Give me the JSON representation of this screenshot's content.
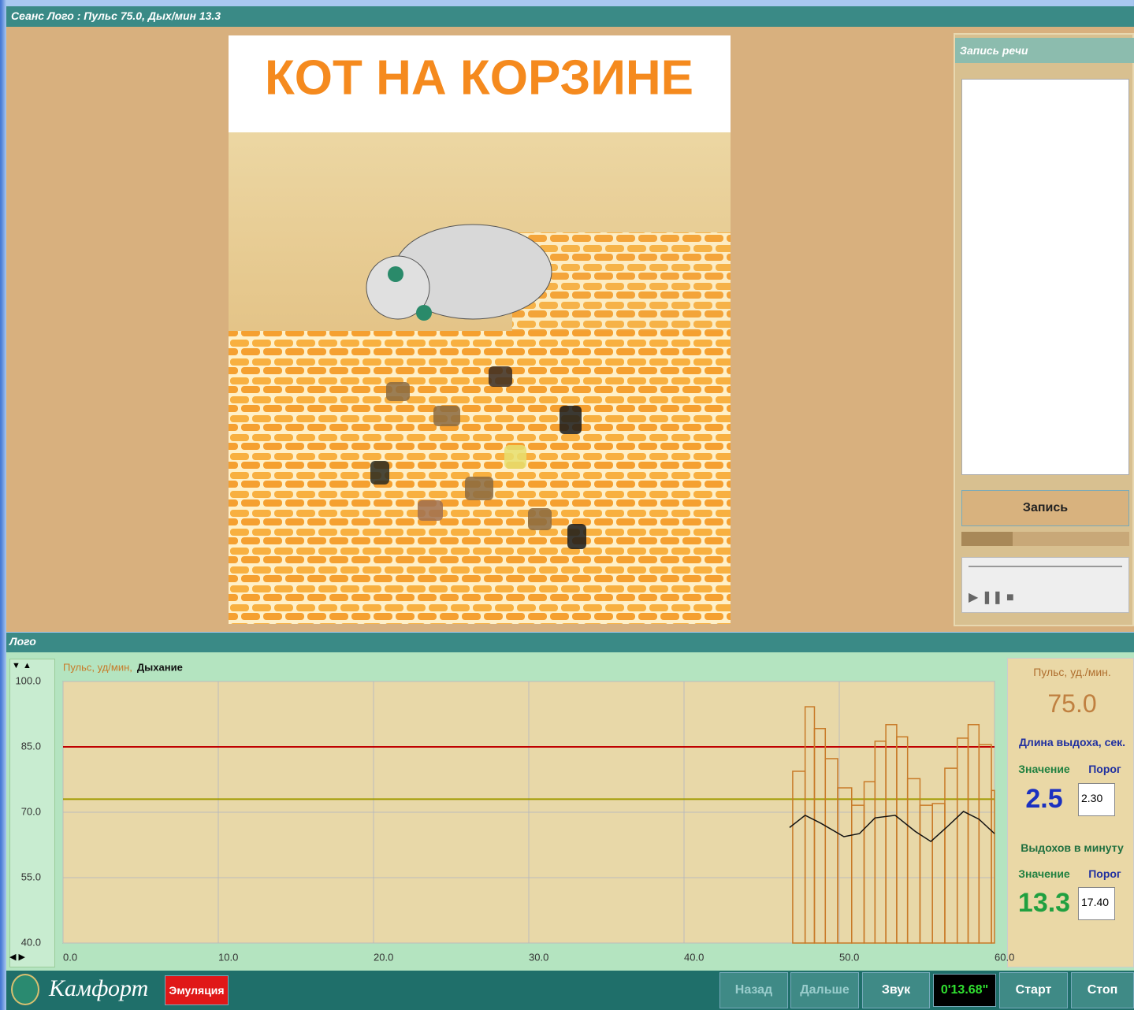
{
  "window": {
    "title": "Сеанс Лого : Пульс 75.0, Дых/мин 13.3"
  },
  "picture": {
    "title": "КОТ НА КОРЗИНЕ"
  },
  "speech_panel": {
    "title": "Запись речи",
    "record_button": "Запись"
  },
  "logo_panel": {
    "title": "Лого"
  },
  "indicators": {
    "pulse_title": "Пульс, уд./мин.",
    "pulse_value": "75.0",
    "exhale_title": "Длина выдоха, сек.",
    "exhale_value_label": "Значение",
    "exhale_threshold_label": "Порог",
    "exhale_value": "2.5",
    "exhale_threshold": "2.30",
    "rate_title": "Выдохов в минуту",
    "rate_value_label": "Значение",
    "rate_threshold_label": "Порог",
    "rate_value": "13.3",
    "rate_threshold": "17.40"
  },
  "footer": {
    "brand": "Камфорт",
    "mode": "Эмуляция",
    "back": "Назад",
    "next": "Дальше",
    "sound": "Звук",
    "timer": "0'13.68\"",
    "start": "Старт",
    "stop": "Стоп"
  },
  "chart_data": {
    "type": "bar",
    "xlim": [
      0,
      60
    ],
    "ylim": [
      40,
      100
    ],
    "xticks": [
      {
        "value": 0,
        "label": "0.0"
      },
      {
        "value": 10,
        "label": "10.0"
      },
      {
        "value": 20,
        "label": "20.0"
      },
      {
        "value": 30,
        "label": "30.0"
      },
      {
        "value": 40,
        "label": "40.0"
      },
      {
        "value": 50,
        "label": "50.0"
      },
      {
        "value": 60,
        "label": "60.0"
      }
    ],
    "yticks": [
      {
        "value": 40,
        "label": "40.0"
      },
      {
        "value": 55,
        "label": "55.0"
      },
      {
        "value": 70,
        "label": "70.0"
      },
      {
        "value": 85,
        "label": "85.0"
      },
      {
        "value": 100,
        "label": "100.0"
      }
    ],
    "grid": true,
    "reference_lines": [
      {
        "value": 85,
        "color": "#c00000"
      },
      {
        "value": 73,
        "color": "#a09a00"
      }
    ],
    "series": [
      {
        "name": "Пульс, уд/мин,",
        "type": "bar",
        "color": "#c87a28",
        "x": [
          47.0,
          47.8,
          48.4,
          49.1,
          49.9,
          50.8,
          51.6,
          52.3,
          53.0,
          53.7,
          54.4,
          55.2,
          56.0,
          56.8,
          57.6,
          58.3,
          59.0,
          59.8
        ],
        "values": [
          79.4,
          94.2,
          89.2,
          82.3,
          75.6,
          71.6,
          77.0,
          86.3,
          90.1,
          87.3,
          77.7,
          71.6,
          72.0,
          80.1,
          87.0,
          90.1,
          85.5,
          75.0
        ]
      },
      {
        "name": "Дыхание",
        "type": "line",
        "color": "#111111",
        "x": [
          46.8,
          47.8,
          48.8,
          50.3,
          51.3,
          52.3,
          53.6,
          54.9,
          55.9,
          56.9,
          58.0,
          59.0,
          60.0
        ],
        "values": [
          66.5,
          69.3,
          67.5,
          64.4,
          65.1,
          68.7,
          69.3,
          65.6,
          63.3,
          66.5,
          70.2,
          68.4,
          65.1
        ]
      }
    ]
  }
}
